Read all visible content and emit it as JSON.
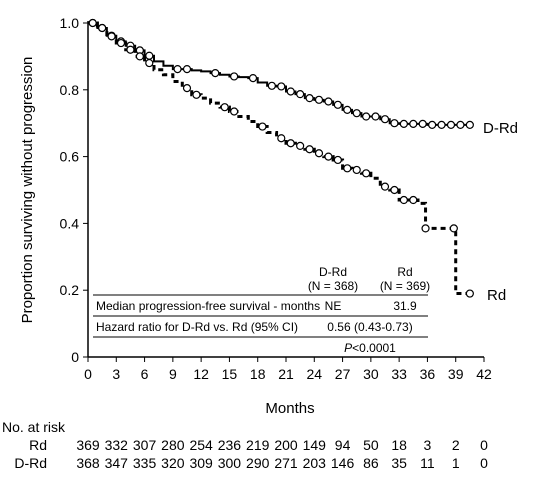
{
  "chart_data": {
    "type": "line",
    "xlabel": "Months",
    "ylabel": "Proportion surviving without progression",
    "xlim": [
      0,
      42
    ],
    "ylim": [
      0,
      1.0
    ],
    "x_ticks": [
      "0",
      "3",
      "6",
      "9",
      "12",
      "15",
      "18",
      "21",
      "24",
      "27",
      "30",
      "33",
      "36",
      "39",
      "42"
    ],
    "y_ticks": [
      "0",
      "0.2",
      "0.4",
      "0.6",
      "0.8",
      "1.0"
    ],
    "series": [
      {
        "name": "D-Rd",
        "line_style": "solid",
        "points": [
          [
            0,
            1.0
          ],
          [
            1,
            0.985
          ],
          [
            2,
            0.962
          ],
          [
            3,
            0.945
          ],
          [
            4,
            0.932
          ],
          [
            5,
            0.918
          ],
          [
            6,
            0.902
          ],
          [
            7,
            0.885
          ],
          [
            8,
            0.872
          ],
          [
            9,
            0.862
          ],
          [
            10,
            0.862
          ],
          [
            11,
            0.858
          ],
          [
            12,
            0.855
          ],
          [
            13,
            0.85
          ],
          [
            14,
            0.845
          ],
          [
            15,
            0.84
          ],
          [
            16,
            0.838
          ],
          [
            17,
            0.835
          ],
          [
            18,
            0.822
          ],
          [
            19,
            0.812
          ],
          [
            20,
            0.81
          ],
          [
            21,
            0.795
          ],
          [
            22,
            0.787
          ],
          [
            23,
            0.775
          ],
          [
            24,
            0.77
          ],
          [
            25,
            0.765
          ],
          [
            26,
            0.755
          ],
          [
            27,
            0.74
          ],
          [
            28,
            0.73
          ],
          [
            29,
            0.72
          ],
          [
            30,
            0.72
          ],
          [
            31,
            0.712
          ],
          [
            32,
            0.7
          ],
          [
            33,
            0.698
          ],
          [
            35,
            0.698
          ],
          [
            36,
            0.695
          ],
          [
            38,
            0.695
          ],
          [
            40.5,
            0.695
          ]
        ],
        "censor_x": [
          0.5,
          1.5,
          2.5,
          3.5,
          4.5,
          5.5,
          6.5,
          9.5,
          10.5,
          13.5,
          15.5,
          17.5,
          19.5,
          20.5,
          21.5,
          22.5,
          23.5,
          24.5,
          25.5,
          26.5,
          27.5,
          28.5,
          29.5,
          30.5,
          31.5,
          32.5,
          33.5,
          34.5,
          35.5,
          36.5,
          37.5,
          38.5,
          39.5,
          40.5
        ]
      },
      {
        "name": "Rd",
        "line_style": "dashed",
        "points": [
          [
            0,
            1.0
          ],
          [
            1,
            0.985
          ],
          [
            2,
            0.96
          ],
          [
            3,
            0.94
          ],
          [
            4,
            0.92
          ],
          [
            5,
            0.9
          ],
          [
            6,
            0.88
          ],
          [
            7,
            0.86
          ],
          [
            8,
            0.845
          ],
          [
            9,
            0.825
          ],
          [
            10,
            0.805
          ],
          [
            11,
            0.785
          ],
          [
            12,
            0.775
          ],
          [
            13,
            0.76
          ],
          [
            14,
            0.748
          ],
          [
            15,
            0.735
          ],
          [
            16,
            0.72
          ],
          [
            17,
            0.705
          ],
          [
            18,
            0.69
          ],
          [
            19,
            0.672
          ],
          [
            20,
            0.655
          ],
          [
            21,
            0.64
          ],
          [
            22,
            0.632
          ],
          [
            23,
            0.622
          ],
          [
            24,
            0.61
          ],
          [
            25,
            0.6
          ],
          [
            26,
            0.59
          ],
          [
            27,
            0.565
          ],
          [
            28,
            0.56
          ],
          [
            29,
            0.55
          ],
          [
            30,
            0.535
          ],
          [
            31,
            0.51
          ],
          [
            32,
            0.5
          ],
          [
            33,
            0.47
          ],
          [
            34,
            0.47
          ],
          [
            35,
            0.46
          ],
          [
            35.8,
            0.385
          ],
          [
            38,
            0.385
          ],
          [
            39,
            0.385
          ],
          [
            39,
            0.19
          ],
          [
            40.5,
            0.19
          ]
        ],
        "censor_x": [
          0.5,
          1.5,
          2.5,
          3.5,
          4.5,
          5.5,
          6.5,
          10.5,
          11.5,
          14.5,
          15.5,
          18.5,
          20.5,
          21.5,
          22.5,
          23.5,
          24.5,
          25.5,
          26.5,
          27.5,
          28.5,
          29.5,
          31.5,
          32.5,
          33.5,
          34.5,
          35.8,
          38.8,
          40.5
        ]
      }
    ],
    "series_labels": [
      "D-Rd",
      "Rd"
    ],
    "table": {
      "header": [
        "D-Rd\n(N = 368)",
        "Rd\n(N = 369)"
      ],
      "rows": [
        {
          "label": "Median progression-free survival - months",
          "d_rd": "NE",
          "rd": "31.9"
        },
        {
          "label": "Hazard ratio for D-Rd vs. Rd (95% CI)",
          "value": "0.56 (0.43-0.73)"
        }
      ],
      "p_value": "P",
      "p_value_rest": "<0.0001"
    },
    "risk_table": {
      "title": "No. at risk",
      "rows": [
        {
          "label": "Rd",
          "values": [
            369,
            332,
            307,
            280,
            254,
            236,
            219,
            200,
            149,
            94,
            50,
            18,
            3,
            2,
            0
          ]
        },
        {
          "label": "D-Rd",
          "values": [
            368,
            347,
            335,
            320,
            309,
            300,
            290,
            271,
            203,
            146,
            86,
            35,
            11,
            1,
            0
          ]
        }
      ]
    },
    "grid": false
  }
}
